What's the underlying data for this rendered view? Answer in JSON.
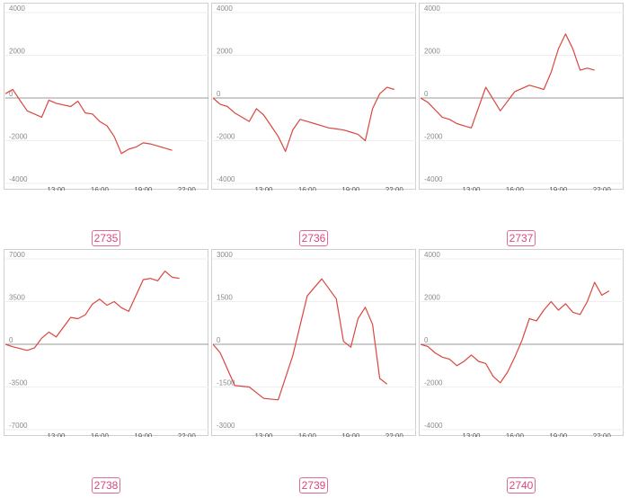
{
  "chart_data": [
    {
      "type": "line",
      "code": "2735",
      "yticks": [
        4000,
        2000,
        0,
        -2000,
        -4000
      ],
      "ylim": [
        -4000,
        4000
      ],
      "xticks": [
        "13:00",
        "16:00",
        "19:00",
        "22:00"
      ],
      "xlim": [
        9.5,
        23.5
      ],
      "x": [
        9.5,
        10,
        11,
        12,
        12.5,
        13,
        14,
        14.5,
        15,
        15.5,
        16,
        16.5,
        17,
        17.5,
        18,
        18.5,
        19,
        19.5,
        20,
        20.5,
        21
      ],
      "values": [
        200,
        400,
        -600,
        -900,
        -100,
        -250,
        -400,
        -150,
        -700,
        -750,
        -1100,
        -1300,
        -1800,
        -2600,
        -2400,
        -2300,
        -2100,
        -2150,
        -2250,
        -2350,
        -2450
      ]
    },
    {
      "type": "line",
      "code": "2736",
      "yticks": [
        4000,
        2000,
        0,
        -2000,
        -4000
      ],
      "ylim": [
        -4000,
        4000
      ],
      "xticks": [
        "13:00",
        "16:00",
        "19:00",
        "22:00"
      ],
      "xlim": [
        9.5,
        23.5
      ],
      "x": [
        9.5,
        10,
        10.5,
        11,
        11.5,
        12,
        12.5,
        13,
        13.5,
        14,
        14.5,
        15,
        15.5,
        16,
        16.5,
        17,
        17.5,
        18,
        18.5,
        19,
        19.5,
        20,
        20.5,
        21,
        21.5,
        22
      ],
      "values": [
        0,
        -300,
        -400,
        -700,
        -900,
        -1100,
        -500,
        -800,
        -1300,
        -1800,
        -2500,
        -1500,
        -1000,
        -1100,
        -1200,
        -1300,
        -1400,
        -1450,
        -1500,
        -1600,
        -1700,
        -2000,
        -500,
        200,
        500,
        400
      ]
    },
    {
      "type": "line",
      "code": "2737",
      "yticks": [
        4000,
        2000,
        0,
        -2000,
        -4000
      ],
      "ylim": [
        -4000,
        4000
      ],
      "xticks": [
        "13:00",
        "16:00",
        "19:00",
        "22:00"
      ],
      "xlim": [
        9.5,
        23.5
      ],
      "x": [
        9.5,
        10,
        11,
        11.5,
        12,
        12.5,
        13,
        14,
        15,
        16,
        17,
        17.5,
        18,
        18.5,
        19,
        19.5,
        20,
        20.5,
        21,
        21.5
      ],
      "values": [
        0,
        -200,
        -900,
        -1000,
        -1200,
        -1300,
        -1400,
        500,
        -600,
        300,
        600,
        500,
        400,
        1200,
        2300,
        3000,
        2300,
        1300,
        1400,
        1300
      ]
    },
    {
      "type": "line",
      "code": "2738",
      "yticks": [
        7000,
        3500,
        0,
        -3500,
        -7000
      ],
      "ylim": [
        -7000,
        7000
      ],
      "xticks": [
        "13:00",
        "16:00",
        "19:00",
        "22:00"
      ],
      "xlim": [
        9.5,
        23.5
      ],
      "x": [
        9.5,
        10,
        11,
        11.5,
        12,
        12.5,
        13,
        14,
        14.5,
        15,
        15.5,
        16,
        16.5,
        17,
        17.5,
        18,
        18.5,
        19,
        19.5,
        20,
        20.5,
        21,
        21.5
      ],
      "values": [
        0,
        -200,
        -500,
        -300,
        500,
        1000,
        600,
        2200,
        2100,
        2400,
        3300,
        3700,
        3200,
        3500,
        3000,
        2700,
        4000,
        5300,
        5400,
        5200,
        6000,
        5500,
        5400
      ]
    },
    {
      "type": "line",
      "code": "2739",
      "yticks": [
        3000,
        1500,
        0,
        -1500,
        -3000
      ],
      "ylim": [
        -3000,
        3000
      ],
      "xticks": [
        "13:00",
        "16:00",
        "19:00",
        "22:00"
      ],
      "xlim": [
        9.5,
        23.5
      ],
      "x": [
        9.5,
        10,
        11,
        12,
        13,
        14,
        15,
        16,
        17,
        18,
        18.5,
        19,
        19.5,
        20,
        20.5,
        21,
        21.5
      ],
      "values": [
        0,
        -300,
        -1450,
        -1500,
        -1900,
        -1950,
        -400,
        1700,
        2300,
        1600,
        100,
        -100,
        900,
        1300,
        700,
        -1200,
        -1400
      ]
    },
    {
      "type": "line",
      "code": "2740",
      "yticks": [
        4000,
        2000,
        0,
        -2000,
        -4000
      ],
      "ylim": [
        -4000,
        4000
      ],
      "xticks": [
        "13:00",
        "16:00",
        "19:00",
        "22:00"
      ],
      "xlim": [
        9.5,
        23.5
      ],
      "x": [
        9.5,
        10,
        10.5,
        11,
        11.5,
        12,
        12.5,
        13,
        13.5,
        14,
        14.5,
        15,
        15.5,
        16,
        16.5,
        17,
        17.5,
        18,
        18.5,
        19,
        19.5,
        20,
        20.5,
        21,
        21.5,
        22,
        22.5
      ],
      "values": [
        0,
        -100,
        -400,
        -600,
        -700,
        -1000,
        -800,
        -500,
        -800,
        -900,
        -1500,
        -1800,
        -1300,
        -600,
        200,
        1200,
        1100,
        1600,
        2000,
        1600,
        1900,
        1500,
        1400,
        2000,
        2900,
        2300,
        2500
      ]
    }
  ],
  "colors": {
    "line": "#d9473f",
    "zero_line": "#9a9a9a",
    "grid": "#eeeeee",
    "label": "#d9477e"
  }
}
